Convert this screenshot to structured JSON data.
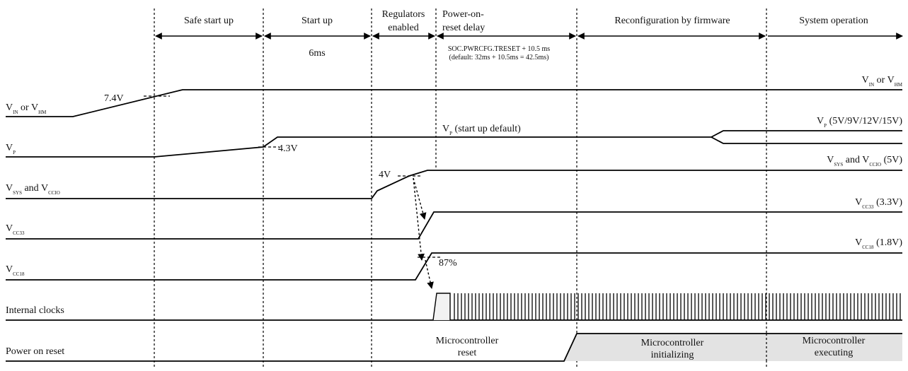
{
  "phases": [
    {
      "label": "Safe start up"
    },
    {
      "label": "Start up",
      "duration": "6ms"
    },
    {
      "label_line1": "Regulators",
      "label_line2": "enabled"
    },
    {
      "label_line1": "Power-on-",
      "label_line2": "reset delay",
      "note_line1": "SOC.PWRCFG.TRESET + 10.5 ms",
      "note_line2": "(default: 32ms + 10.5ms = 42.5ms)"
    },
    {
      "label": "Reconfiguration by firmware"
    },
    {
      "label": "System operation"
    }
  ],
  "signals": {
    "vin": {
      "left_main1": "V",
      "left_sub1": "IN",
      "left_or": " or ",
      "left_main2": "V",
      "left_sub2": "HM",
      "threshold": "7.4V",
      "right_main1": "V",
      "right_sub1": "IN",
      "right_or": " or ",
      "right_main2": "V",
      "right_sub2": "HM"
    },
    "vp": {
      "left_main": "V",
      "left_sub": "P",
      "threshold": "4.3V",
      "mid_main": "V",
      "mid_sub": "P",
      "mid_text": " (start up default)",
      "right_main": "V",
      "right_sub": "P",
      "right_text": " (5V/9V/12V/15V)"
    },
    "vsys": {
      "left_main1": "V",
      "left_sub1": "SYS",
      "left_and": " and ",
      "left_main2": "V",
      "left_sub2": "CCIO",
      "threshold": "4V",
      "right_main1": "V",
      "right_sub1": "SYS",
      "right_and": " and ",
      "right_main2": "V",
      "right_sub2": "CCIO",
      "right_text": " (5V)"
    },
    "vcc33": {
      "left_main": "V",
      "left_sub": "CC33",
      "right_main": "V",
      "right_sub": "CC33",
      "right_text": " (3.3V)"
    },
    "vcc18": {
      "left_main": "V",
      "left_sub": "CC18",
      "threshold": "87%",
      "right_main": "V",
      "right_sub": "CC18",
      "right_text": " (1.8V)"
    },
    "clocks": {
      "label": "Internal clocks"
    },
    "por": {
      "label": "Power on reset",
      "state1_line1": "Microcontroller",
      "state1_line2": "reset",
      "state2_line1": "Microcontroller",
      "state2_line2": "initializing",
      "state3_line1": "Microcontroller",
      "state3_line2": "executing"
    }
  },
  "colors": {
    "line": "#000000",
    "shade": "#e3e3e3",
    "background": "#ffffff"
  }
}
